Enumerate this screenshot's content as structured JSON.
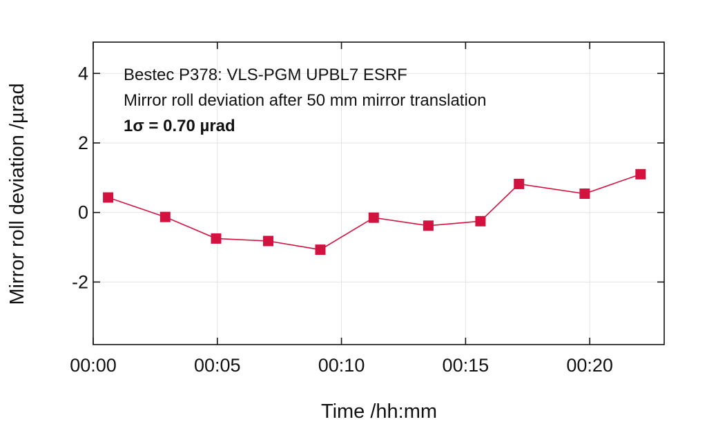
{
  "chart_data": {
    "type": "line",
    "title": "",
    "annotations": [
      "Bestec P378: VLS-PGM UPBL7 ESRF",
      "Mirror roll deviation after 50 mm mirror translation",
      "1σ = 0.70 µrad"
    ],
    "xlabel": "Time /hh:mm",
    "ylabel": "Mirror roll deviation /µrad",
    "x_unit": "minutes",
    "xlim": [
      0,
      23
    ],
    "ylim": [
      -3.8,
      4.9
    ],
    "x_ticks": [
      0,
      5,
      10,
      15,
      20
    ],
    "x_tick_labels": [
      "00:00",
      "00:05",
      "00:10",
      "00:15",
      "00:20"
    ],
    "y_ticks": [
      -2,
      0,
      2,
      4
    ],
    "y_tick_labels": [
      "-2",
      "0",
      "2",
      "4"
    ],
    "grid": true,
    "series": [
      {
        "color": "#d4123f",
        "marker": "square",
        "x": [
          0.6,
          2.9,
          4.95,
          7.05,
          9.15,
          11.3,
          13.5,
          15.6,
          17.15,
          19.8,
          22.05
        ],
        "values": [
          0.43,
          -0.13,
          -0.75,
          -0.82,
          -1.07,
          -0.15,
          -0.38,
          -0.25,
          0.82,
          0.54,
          1.1
        ]
      }
    ]
  }
}
